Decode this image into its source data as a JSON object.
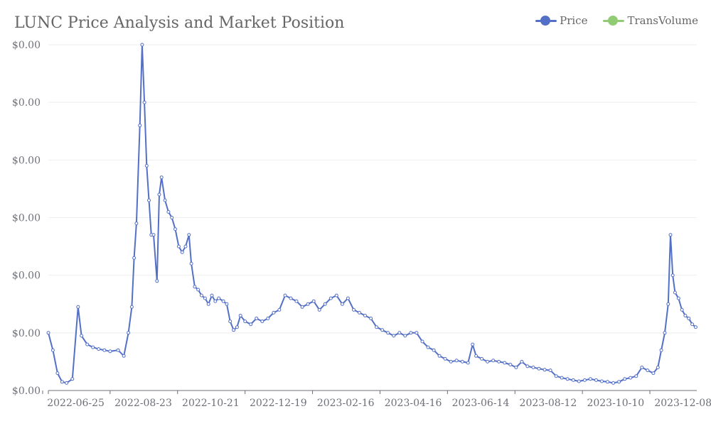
{
  "chart_data": {
    "type": "line",
    "title": "LUNC Price Analysis and Market Position",
    "xlabel": "",
    "ylabel": "",
    "x_tick_labels": [
      "2022-06-25",
      "2022-08-23",
      "2022-10-21",
      "2022-12-19",
      "2023-02-16",
      "2023-04-16",
      "2023-06-14",
      "2023-08-12",
      "2023-10-10",
      "2023-12-08"
    ],
    "y_tick_labels": [
      "$0.00",
      "$0.00",
      "$0.00",
      "$0.00",
      "$0.00",
      "$0.00",
      "$0.00"
    ],
    "ylim": [
      0,
      0.0006
    ],
    "legend_position": "top-right",
    "grid": true,
    "series": [
      {
        "name": "Price",
        "color": "#5470c6",
        "points": [
          [
            "2022-06-01",
            0.0001
          ],
          [
            "2022-06-05",
            7e-05
          ],
          [
            "2022-06-09",
            3e-05
          ],
          [
            "2022-06-13",
            1.5e-05
          ],
          [
            "2022-06-17",
            1.3e-05
          ],
          [
            "2022-06-22",
            2e-05
          ],
          [
            "2022-06-27",
            0.000145
          ],
          [
            "2022-06-30",
            9.5e-05
          ],
          [
            "2022-07-05",
            8e-05
          ],
          [
            "2022-07-10",
            7.5e-05
          ],
          [
            "2022-07-15",
            7.2e-05
          ],
          [
            "2022-07-20",
            7e-05
          ],
          [
            "2022-07-25",
            6.8e-05
          ],
          [
            "2022-08-01",
            7e-05
          ],
          [
            "2022-08-06",
            6e-05
          ],
          [
            "2022-08-10",
            0.0001
          ],
          [
            "2022-08-13",
            0.000145
          ],
          [
            "2022-08-15",
            0.00023
          ],
          [
            "2022-08-17",
            0.00029
          ],
          [
            "2022-08-20",
            0.00046
          ],
          [
            "2022-08-22",
            0.0006
          ],
          [
            "2022-08-24",
            0.0005
          ],
          [
            "2022-08-26",
            0.00039
          ],
          [
            "2022-08-28",
            0.00033
          ],
          [
            "2022-08-30",
            0.00027
          ],
          [
            "2022-09-01",
            0.00027
          ],
          [
            "2022-09-04",
            0.00019
          ],
          [
            "2022-09-06",
            0.00034
          ],
          [
            "2022-09-08",
            0.00037
          ],
          [
            "2022-09-11",
            0.00033
          ],
          [
            "2022-09-14",
            0.00031
          ],
          [
            "2022-09-17",
            0.0003
          ],
          [
            "2022-09-20",
            0.00028
          ],
          [
            "2022-09-23",
            0.00025
          ],
          [
            "2022-09-26",
            0.00024
          ],
          [
            "2022-09-29",
            0.00025
          ],
          [
            "2022-10-02",
            0.00027
          ],
          [
            "2022-10-04",
            0.00022
          ],
          [
            "2022-10-07",
            0.00018
          ],
          [
            "2022-10-10",
            0.000175
          ],
          [
            "2022-10-13",
            0.000165
          ],
          [
            "2022-10-16",
            0.00016
          ],
          [
            "2022-10-19",
            0.00015
          ],
          [
            "2022-10-22",
            0.000165
          ],
          [
            "2022-10-25",
            0.000155
          ],
          [
            "2022-10-28",
            0.00016
          ],
          [
            "2022-11-01",
            0.000155
          ],
          [
            "2022-11-04",
            0.00015
          ],
          [
            "2022-11-07",
            0.00012
          ],
          [
            "2022-11-10",
            0.000105
          ],
          [
            "2022-11-13",
            0.00011
          ],
          [
            "2022-11-16",
            0.00013
          ],
          [
            "2022-11-20",
            0.00012
          ],
          [
            "2022-11-25",
            0.000115
          ],
          [
            "2022-11-30",
            0.000125
          ],
          [
            "2022-12-05",
            0.00012
          ],
          [
            "2022-12-10",
            0.000125
          ],
          [
            "2022-12-15",
            0.000135
          ],
          [
            "2022-12-20",
            0.00014
          ],
          [
            "2022-12-25",
            0.000165
          ],
          [
            "2022-12-30",
            0.00016
          ],
          [
            "2023-01-04",
            0.000155
          ],
          [
            "2023-01-09",
            0.000145
          ],
          [
            "2023-01-14",
            0.00015
          ],
          [
            "2023-01-19",
            0.000155
          ],
          [
            "2023-01-24",
            0.00014
          ],
          [
            "2023-01-29",
            0.00015
          ],
          [
            "2023-02-03",
            0.00016
          ],
          [
            "2023-02-08",
            0.000165
          ],
          [
            "2023-02-13",
            0.00015
          ],
          [
            "2023-02-18",
            0.00016
          ],
          [
            "2023-02-23",
            0.00014
          ],
          [
            "2023-02-28",
            0.000135
          ],
          [
            "2023-03-05",
            0.00013
          ],
          [
            "2023-03-10",
            0.000125
          ],
          [
            "2023-03-15",
            0.00011
          ],
          [
            "2023-03-20",
            0.000105
          ],
          [
            "2023-03-25",
            0.0001
          ],
          [
            "2023-03-30",
            9.5e-05
          ],
          [
            "2023-04-04",
            0.0001
          ],
          [
            "2023-04-09",
            9.5e-05
          ],
          [
            "2023-04-14",
            0.0001
          ],
          [
            "2023-04-19",
            0.0001
          ],
          [
            "2023-04-24",
            8.5e-05
          ],
          [
            "2023-04-29",
            7.5e-05
          ],
          [
            "2023-05-04",
            7e-05
          ],
          [
            "2023-05-09",
            6e-05
          ],
          [
            "2023-05-14",
            5.5e-05
          ],
          [
            "2023-05-19",
            5e-05
          ],
          [
            "2023-05-24",
            5.2e-05
          ],
          [
            "2023-05-29",
            5e-05
          ],
          [
            "2023-06-03",
            4.8e-05
          ],
          [
            "2023-06-07",
            8e-05
          ],
          [
            "2023-06-10",
            6e-05
          ],
          [
            "2023-06-15",
            5.5e-05
          ],
          [
            "2023-06-20",
            5e-05
          ],
          [
            "2023-06-25",
            5.2e-05
          ],
          [
            "2023-06-30",
            5e-05
          ],
          [
            "2023-07-05",
            4.8e-05
          ],
          [
            "2023-07-10",
            4.5e-05
          ],
          [
            "2023-07-15",
            4e-05
          ],
          [
            "2023-07-20",
            5e-05
          ],
          [
            "2023-07-25",
            4.2e-05
          ],
          [
            "2023-07-30",
            4e-05
          ],
          [
            "2023-08-04",
            3.8e-05
          ],
          [
            "2023-08-09",
            3.6e-05
          ],
          [
            "2023-08-14",
            3.5e-05
          ],
          [
            "2023-08-19",
            2.5e-05
          ],
          [
            "2023-08-24",
            2.2e-05
          ],
          [
            "2023-08-29",
            2e-05
          ],
          [
            "2023-09-03",
            1.8e-05
          ],
          [
            "2023-09-08",
            1.6e-05
          ],
          [
            "2023-09-13",
            1.8e-05
          ],
          [
            "2023-09-18",
            2e-05
          ],
          [
            "2023-09-23",
            1.8e-05
          ],
          [
            "2023-09-28",
            1.6e-05
          ],
          [
            "2023-10-03",
            1.5e-05
          ],
          [
            "2023-10-08",
            1.3e-05
          ],
          [
            "2023-10-13",
            1.5e-05
          ],
          [
            "2023-10-18",
            2e-05
          ],
          [
            "2023-10-23",
            2.2e-05
          ],
          [
            "2023-10-28",
            2.5e-05
          ],
          [
            "2023-11-02",
            4e-05
          ],
          [
            "2023-11-07",
            3.5e-05
          ],
          [
            "2023-11-12",
            3e-05
          ],
          [
            "2023-11-16",
            4e-05
          ],
          [
            "2023-11-19",
            7e-05
          ],
          [
            "2023-11-22",
            0.0001
          ],
          [
            "2023-11-25",
            0.00015
          ],
          [
            "2023-11-27",
            0.00027
          ],
          [
            "2023-11-29",
            0.0002
          ],
          [
            "2023-12-01",
            0.00017
          ],
          [
            "2023-12-04",
            0.00016
          ],
          [
            "2023-12-07",
            0.00014
          ],
          [
            "2023-12-10",
            0.00013
          ],
          [
            "2023-12-13",
            0.000125
          ],
          [
            "2023-12-16",
            0.000115
          ],
          [
            "2023-12-19",
            0.00011
          ]
        ]
      },
      {
        "name": "TransVolume",
        "color": "#91cc75",
        "points": []
      }
    ]
  }
}
